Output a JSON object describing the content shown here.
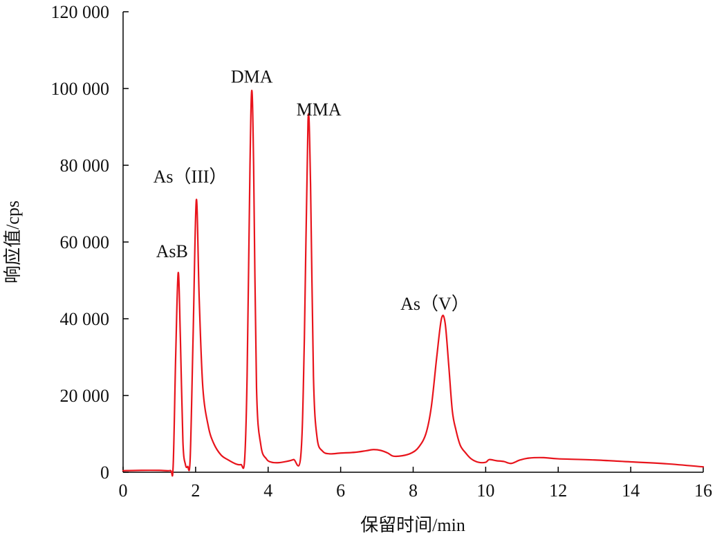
{
  "chart_data": {
    "type": "line",
    "xlabel": "保留时间/min",
    "ylabel": "响应值/cps",
    "xlim": [
      0,
      16
    ],
    "ylim": [
      0,
      120000
    ],
    "grid": false,
    "x_ticks": [
      {
        "value": 0,
        "label": "0"
      },
      {
        "value": 2,
        "label": "2"
      },
      {
        "value": 4,
        "label": "4"
      },
      {
        "value": 6,
        "label": "6"
      },
      {
        "value": 8,
        "label": "8"
      },
      {
        "value": 10,
        "label": "10"
      },
      {
        "value": 12,
        "label": "12"
      },
      {
        "value": 14,
        "label": "14"
      },
      {
        "value": 16,
        "label": "16"
      }
    ],
    "y_ticks": [
      {
        "value": 0,
        "label": "0"
      },
      {
        "value": 20000,
        "label": "20 000"
      },
      {
        "value": 40000,
        "label": "40 000"
      },
      {
        "value": 60000,
        "label": "60 000"
      },
      {
        "value": 80000,
        "label": "80 000"
      },
      {
        "value": 100000,
        "label": "100 000"
      },
      {
        "value": 120000,
        "label": "120 000"
      }
    ],
    "peak_labels": [
      {
        "text": "AsB",
        "x": 1.35,
        "y": 56000
      },
      {
        "text": "As（III）",
        "x": 1.85,
        "y": 75500
      },
      {
        "text": "DMA",
        "x": 3.55,
        "y": 101500
      },
      {
        "text": "MMA",
        "x": 5.4,
        "y": 93000
      },
      {
        "text": "As（V）",
        "x": 8.6,
        "y": 42300
      }
    ],
    "series": [
      {
        "color": "#e8141c",
        "points": [
          [
            0,
            400
          ],
          [
            0.5,
            500
          ],
          [
            1.0,
            500
          ],
          [
            1.3,
            450
          ],
          [
            1.38,
            1500
          ],
          [
            1.45,
            30000
          ],
          [
            1.52,
            52000
          ],
          [
            1.58,
            35000
          ],
          [
            1.65,
            8000
          ],
          [
            1.72,
            2000
          ],
          [
            1.78,
            1500
          ],
          [
            1.85,
            3500
          ],
          [
            1.93,
            35000
          ],
          [
            2.02,
            71000
          ],
          [
            2.1,
            45000
          ],
          [
            2.2,
            22000
          ],
          [
            2.35,
            12000
          ],
          [
            2.5,
            7500
          ],
          [
            2.7,
            4500
          ],
          [
            2.9,
            3200
          ],
          [
            3.1,
            2200
          ],
          [
            3.25,
            2000
          ],
          [
            3.35,
            3000
          ],
          [
            3.42,
            25000
          ],
          [
            3.5,
            80000
          ],
          [
            3.55,
            99500
          ],
          [
            3.6,
            80000
          ],
          [
            3.68,
            22000
          ],
          [
            3.8,
            7000
          ],
          [
            3.95,
            3500
          ],
          [
            4.1,
            2600
          ],
          [
            4.3,
            2500
          ],
          [
            4.5,
            2800
          ],
          [
            4.7,
            3300
          ],
          [
            4.9,
            4200
          ],
          [
            5.0,
            35000
          ],
          [
            5.1,
            91500
          ],
          [
            5.17,
            75000
          ],
          [
            5.25,
            25000
          ],
          [
            5.35,
            9000
          ],
          [
            5.5,
            5500
          ],
          [
            5.7,
            4800
          ],
          [
            6.0,
            5000
          ],
          [
            6.4,
            5200
          ],
          [
            6.7,
            5600
          ],
          [
            6.9,
            5900
          ],
          [
            7.1,
            5700
          ],
          [
            7.3,
            5000
          ],
          [
            7.45,
            4200
          ],
          [
            7.7,
            4300
          ],
          [
            7.95,
            5000
          ],
          [
            8.15,
            6500
          ],
          [
            8.35,
            10000
          ],
          [
            8.5,
            17000
          ],
          [
            8.65,
            30000
          ],
          [
            8.78,
            40000
          ],
          [
            8.88,
            39000
          ],
          [
            8.98,
            28000
          ],
          [
            9.08,
            16000
          ],
          [
            9.18,
            11000
          ],
          [
            9.3,
            7000
          ],
          [
            9.45,
            5000
          ],
          [
            9.6,
            3500
          ],
          [
            9.8,
            2600
          ],
          [
            10.0,
            2600
          ],
          [
            10.1,
            3300
          ],
          [
            10.3,
            3000
          ],
          [
            10.5,
            2800
          ],
          [
            10.7,
            2300
          ],
          [
            10.95,
            3200
          ],
          [
            11.2,
            3700
          ],
          [
            11.6,
            3800
          ],
          [
            12.0,
            3500
          ],
          [
            13.0,
            3200
          ],
          [
            14.0,
            2700
          ],
          [
            15.0,
            2200
          ],
          [
            16.0,
            1400
          ]
        ]
      }
    ]
  }
}
